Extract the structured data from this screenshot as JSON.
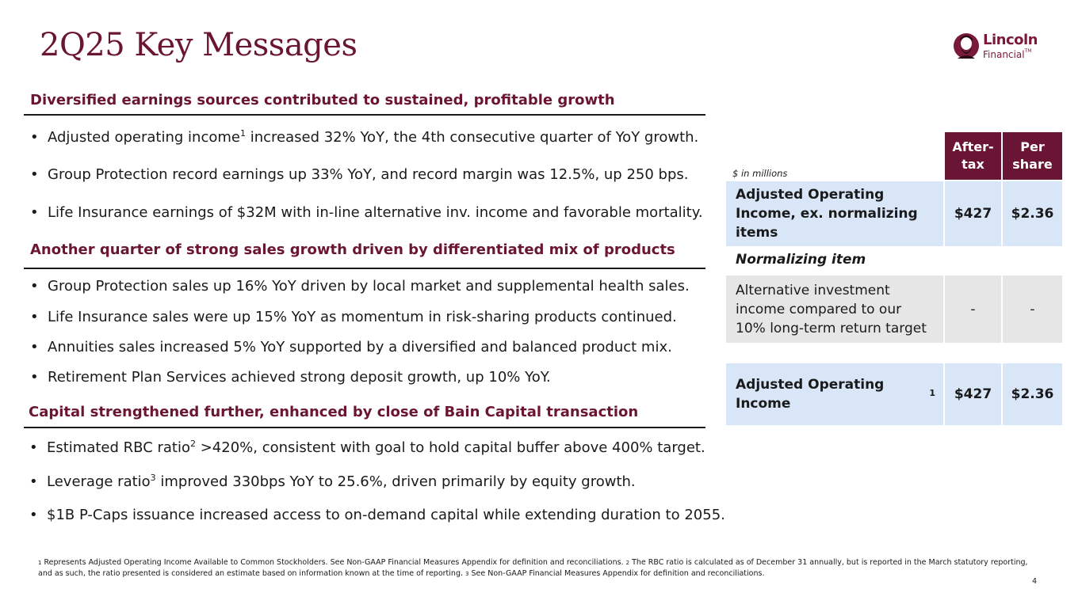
{
  "title": "2Q25 Key Messages",
  "logo": {
    "line1": "Lincoln",
    "line2": "Financial",
    "tm": "TM"
  },
  "sections": [
    {
      "heading": "Diversified earnings sources contributed to sustained, profitable growth",
      "bullets": [
        {
          "pre": "Adjusted operating income",
          "sup": "1",
          "post": " increased 32% YoY, the 4th consecutive quarter of YoY growth."
        },
        {
          "pre": "Group Protection record earnings up 33% YoY, and record margin was 12.5%, up 250 bps.",
          "sup": "",
          "post": ""
        },
        {
          "pre": "Life Insurance earnings of $32M with in-line alternative inv. income and favorable mortality.",
          "sup": "",
          "post": ""
        }
      ]
    },
    {
      "heading": "Another quarter of strong sales growth driven by differentiated mix of products",
      "bullets": [
        {
          "pre": "Group Protection sales up 16% YoY driven by local market and supplemental health sales.",
          "sup": "",
          "post": ""
        },
        {
          "pre": "Life Insurance sales were up 15% YoY as momentum in risk-sharing products continued.",
          "sup": "",
          "post": ""
        },
        {
          "pre": "Annuities sales increased 5% YoY supported by a diversified and balanced product mix.",
          "sup": "",
          "post": ""
        },
        {
          "pre": "Retirement Plan Services achieved strong deposit growth, up 10% YoY.",
          "sup": "",
          "post": ""
        }
      ]
    },
    {
      "heading": "Capital strengthened further, enhanced by close of Bain Capital transaction",
      "bullets": [
        {
          "pre": "Estimated RBC ratio",
          "sup": "2",
          "post": " >420%, consistent with goal to hold capital buffer above 400% target."
        },
        {
          "pre": "Leverage ratio",
          "sup": "3",
          "post": " improved 330bps YoY to 25.6%, driven primarily by equity growth."
        },
        {
          "pre": "$1B P-Caps issuance increased access to on-demand capital while extending duration to 2055.",
          "sup": "",
          "post": ""
        }
      ]
    }
  ],
  "table": {
    "note": "$ in millions",
    "col1": "After-tax",
    "col2": "Per share",
    "row1": {
      "label": "Adjusted Operating Income, ex. normalizing items",
      "after_tax": "$427",
      "per_share": "$2.36"
    },
    "normalizing_label": "Normalizing item",
    "row2": {
      "label": "Alternative investment income compared to our 10% long-term return target",
      "after_tax": "-",
      "per_share": "-"
    },
    "row3": {
      "label": "Adjusted Operating Income",
      "sup": "1",
      "after_tax": "$427",
      "per_share": "$2.36"
    }
  },
  "footnote": {
    "s1": "1",
    "t1": " Represents Adjusted Operating Income Available to Common Stockholders. See Non-GAAP Financial Measures Appendix for definition and reconciliations. ",
    "s2": "2",
    "t2": " The RBC ratio is calculated as of December 31 annually, but is reported in the March statutory reporting, and as such, the ratio presented is considered an estimate based on information known at the time of reporting.  ",
    "s3": "3",
    "t3": " See Non-GAAP Financial Measures Appendix for definition and reconciliations."
  },
  "page_number": "4",
  "colors": {
    "brand": "#6b1534",
    "table_blue": "#d9e6f7",
    "table_grey": "#e6e6e6"
  }
}
